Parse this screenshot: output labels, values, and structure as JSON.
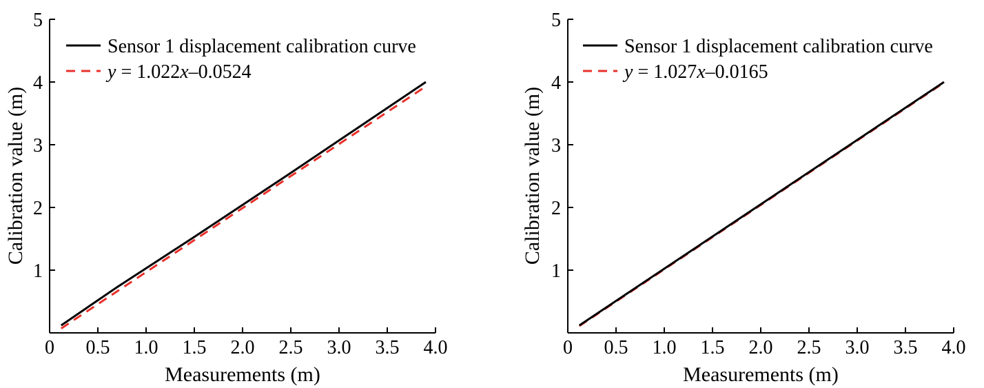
{
  "colors": {
    "calibration_curve": "#000000",
    "fit_line": "#e8302a"
  },
  "chart_data": [
    {
      "type": "line",
      "xlabel": "Measurements (m)",
      "ylabel": "Calibration value (m)",
      "xlim": [
        0,
        4.0
      ],
      "ylim": [
        0,
        5
      ],
      "xticks": [
        "0",
        "0.5",
        "1.0",
        "1.5",
        "2.0",
        "2.5",
        "3.0",
        "3.5",
        "4.0"
      ],
      "yticks": [
        "1",
        "2",
        "3",
        "4",
        "5"
      ],
      "legend_position": "top-left",
      "series": [
        {
          "name": "Sensor 1 displacement calibration curve",
          "style": "solid",
          "x": [
            0.12,
            0.7,
            1.5,
            2.5,
            3.9
          ],
          "y": [
            0.12,
            0.73,
            1.53,
            2.55,
            4.0
          ]
        },
        {
          "name_prefix": "y",
          "name_eq": " = 1.022",
          "name_var": "x",
          "name_suffix": "–0.0524",
          "style": "dashed",
          "x": [
            0.12,
            3.9
          ],
          "y": [
            0.07,
            3.93
          ]
        }
      ]
    },
    {
      "type": "line",
      "xlabel": "Measurements (m)",
      "ylabel": "Calibration value (m)",
      "xlim": [
        0,
        4.0
      ],
      "ylim": [
        0,
        5
      ],
      "xticks": [
        "0",
        "0.5",
        "1.0",
        "1.5",
        "2.0",
        "2.5",
        "3.0",
        "3.5",
        "4.0"
      ],
      "yticks": [
        "1",
        "2",
        "3",
        "4",
        "5"
      ],
      "legend_position": "top-left",
      "series": [
        {
          "name": "Sensor 1 displacement calibration curve",
          "style": "solid",
          "x": [
            0.12,
            3.9
          ],
          "y": [
            0.12,
            4.0
          ]
        },
        {
          "name_prefix": "y",
          "name_eq": " = 1.027",
          "name_var": "x",
          "name_suffix": "–0.0165",
          "style": "dashed",
          "x": [
            0.12,
            3.9
          ],
          "y": [
            0.11,
            3.99
          ]
        }
      ]
    }
  ]
}
